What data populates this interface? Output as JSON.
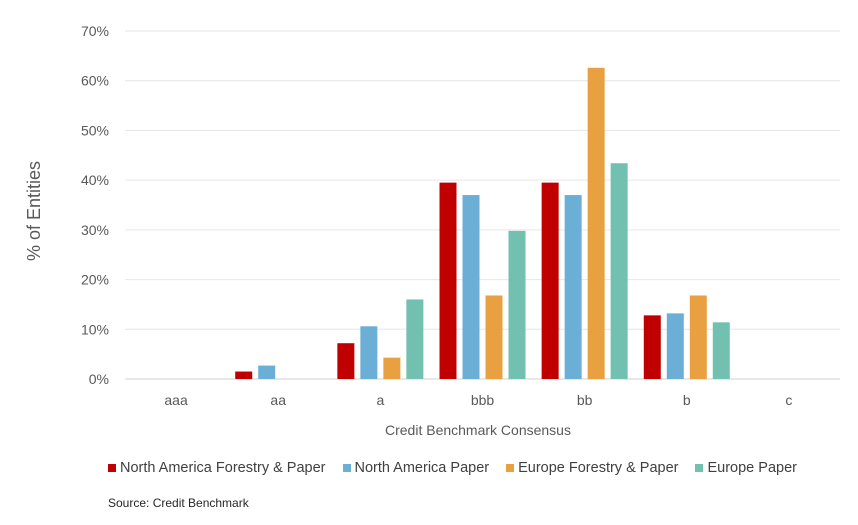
{
  "chart_data": {
    "type": "bar",
    "categories": [
      "aaa",
      "aa",
      "a",
      "bbb",
      "bb",
      "b",
      "c"
    ],
    "series": [
      {
        "name": "North America Forestry & Paper",
        "color": "#C00000",
        "values": [
          0,
          1.5,
          7.2,
          39.5,
          39.5,
          12.8,
          0
        ]
      },
      {
        "name": "North America Paper",
        "color": "#6BAED6",
        "values": [
          0,
          2.7,
          10.6,
          37.0,
          37.0,
          13.2,
          0
        ]
      },
      {
        "name": "Europe Forestry & Paper",
        "color": "#E8A040",
        "values": [
          0,
          0,
          4.3,
          16.8,
          62.6,
          16.8,
          0
        ]
      },
      {
        "name": "Europe Paper",
        "color": "#72C0B0",
        "values": [
          0,
          0,
          16.0,
          29.8,
          43.4,
          11.4,
          0
        ]
      }
    ],
    "xlabel": "Credit Benchmark Consensus",
    "ylabel": "% of Entities",
    "yticks": [
      "0%",
      "10%",
      "20%",
      "30%",
      "40%",
      "50%",
      "60%",
      "70%"
    ],
    "ylim": [
      0,
      70
    ],
    "grid": true,
    "legend_position": "bottom"
  },
  "source": "Source: Credit Benchmark"
}
